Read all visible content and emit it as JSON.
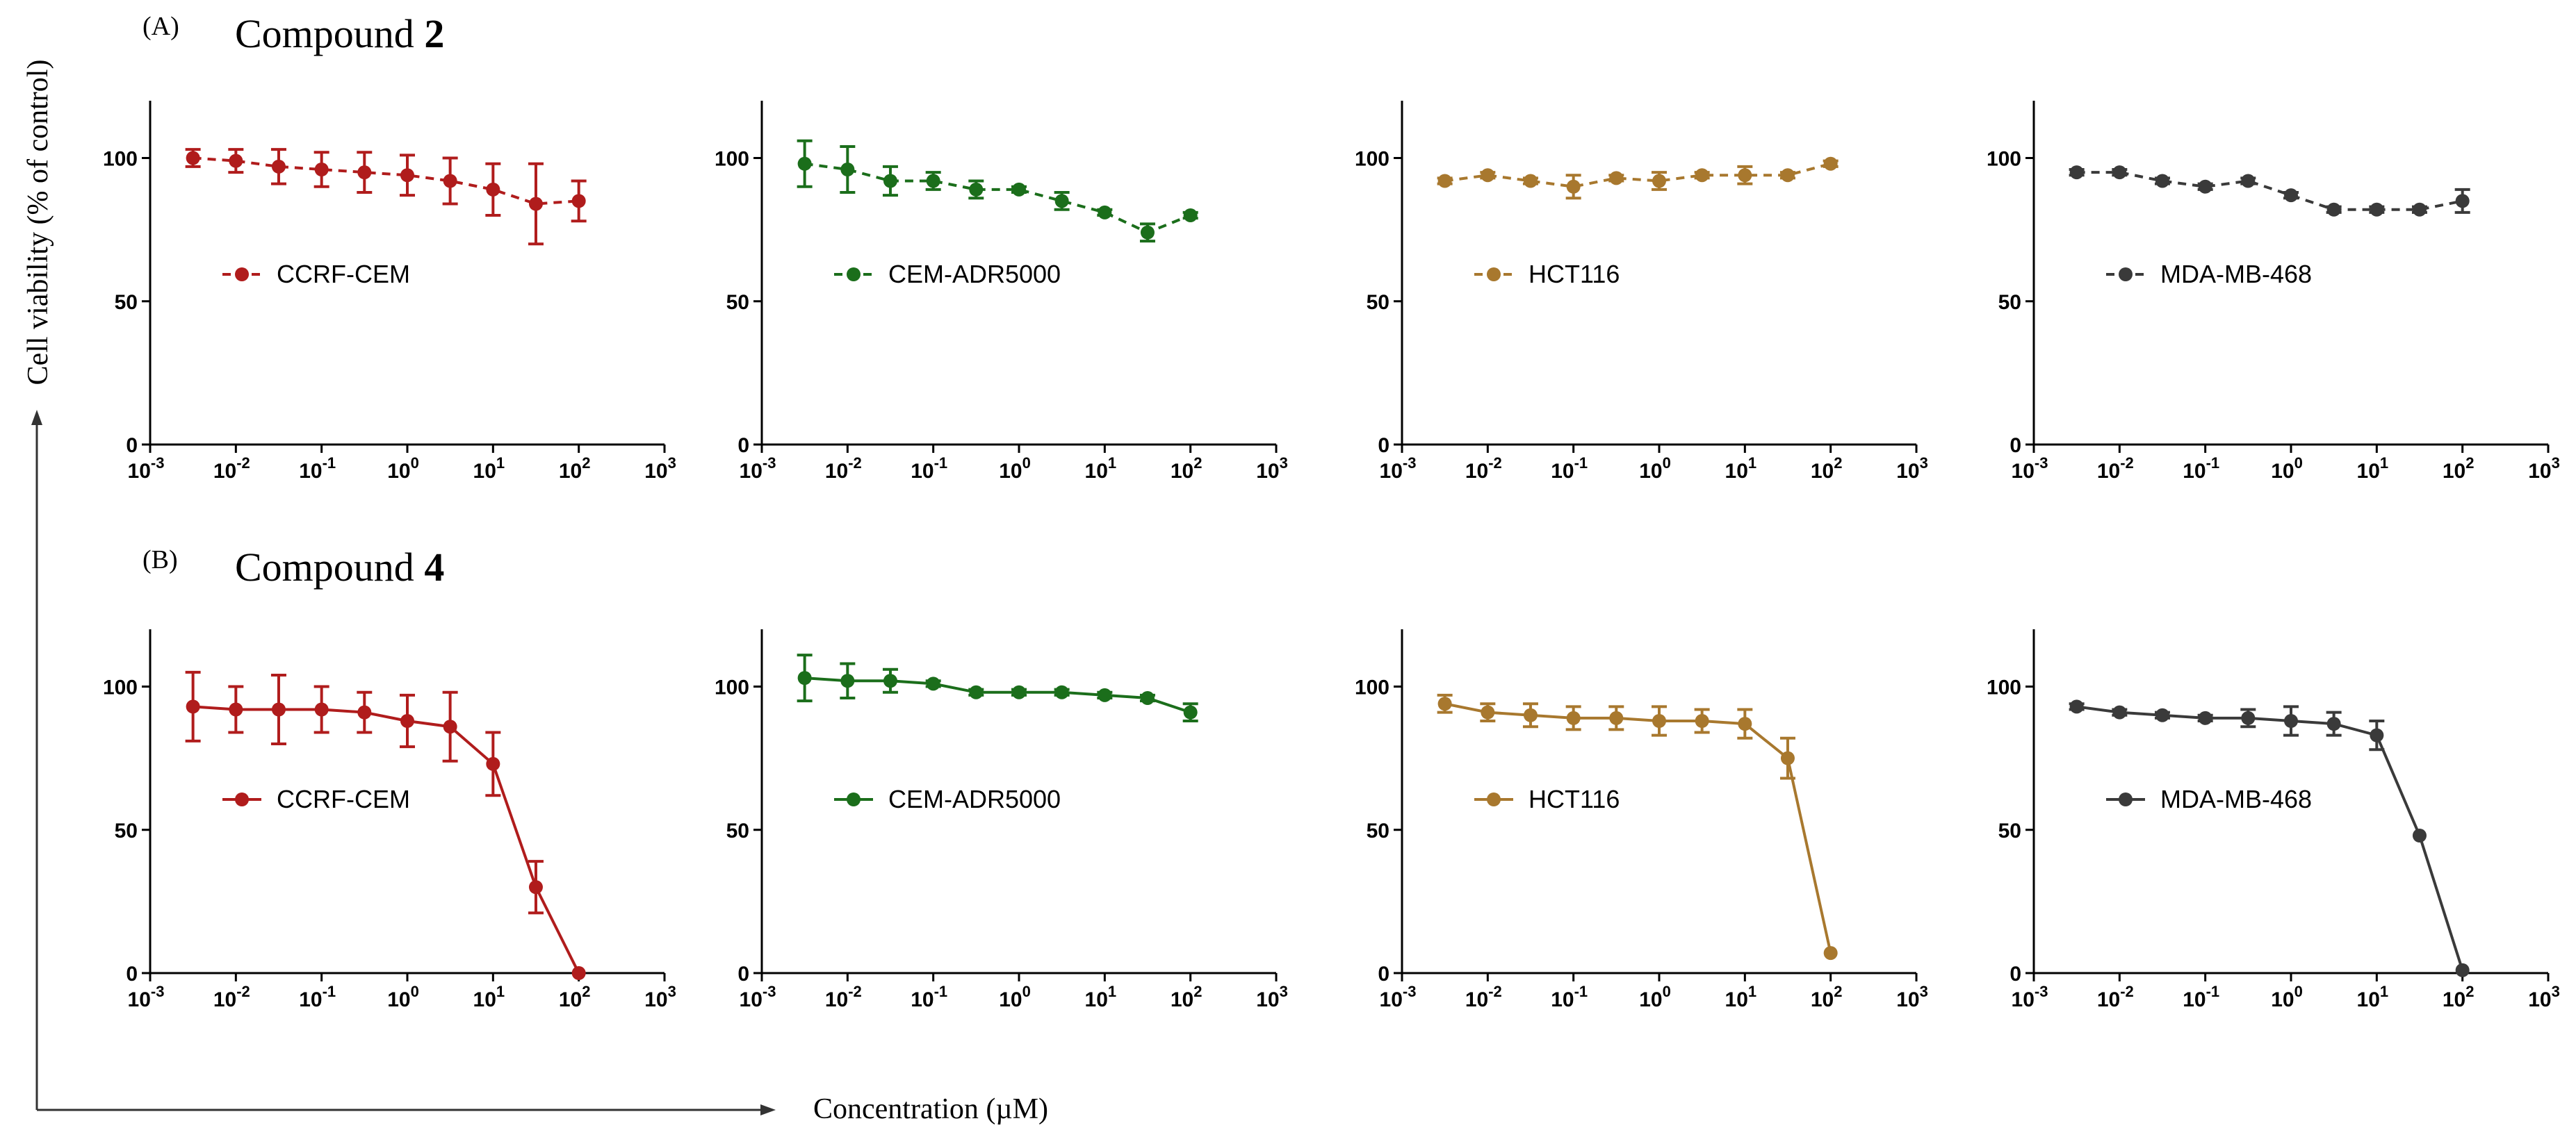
{
  "figure": {
    "y_axis_label": "Cell viability  (% of control)",
    "x_axis_label": "Concentration (µM)"
  },
  "panels": [
    {
      "tag": "(A)",
      "title_prefix": "Compound ",
      "title_number": "2"
    },
    {
      "tag": "(B)",
      "title_prefix": "Compound ",
      "title_number": "4"
    }
  ],
  "colors": {
    "CCRF-CEM": "#b01c1c",
    "CEM-ADR5000": "#1b6e1b",
    "HCT116": "#a8782e",
    "MDA-MB-468": "#3a3a3a"
  },
  "chart_data": [
    {
      "type": "line",
      "panel": "A",
      "xscale": "log",
      "xlim": [
        0.001,
        1000
      ],
      "ylim": [
        0,
        120
      ],
      "yticks": [
        0,
        50,
        100
      ],
      "xticks": [
        "10-3",
        "10-2",
        "10-1",
        "100",
        "101",
        "102",
        "103"
      ],
      "line_style": "dashed",
      "series": [
        {
          "name": "CCRF-CEM",
          "x": [
            0.00316,
            0.01,
            0.0316,
            0.1,
            0.316,
            1,
            3.16,
            10,
            31.6,
            100
          ],
          "y": [
            100,
            99,
            97,
            96,
            95,
            94,
            92,
            89,
            84,
            85
          ],
          "err": [
            3,
            4,
            6,
            6,
            7,
            7,
            8,
            9,
            14,
            7
          ]
        }
      ]
    },
    {
      "type": "line",
      "panel": "A",
      "xscale": "log",
      "xlim": [
        0.001,
        1000
      ],
      "ylim": [
        0,
        120
      ],
      "yticks": [
        0,
        50,
        100
      ],
      "xticks": [
        "10-3",
        "10-2",
        "10-1",
        "100",
        "101",
        "102",
        "103"
      ],
      "line_style": "dashed",
      "series": [
        {
          "name": "CEM-ADR5000",
          "x": [
            0.00316,
            0.01,
            0.0316,
            0.1,
            0.316,
            1,
            3.16,
            10,
            31.6,
            100
          ],
          "y": [
            98,
            96,
            92,
            92,
            89,
            89,
            85,
            81,
            74,
            80
          ],
          "err": [
            8,
            8,
            5,
            3,
            3,
            1,
            3,
            1,
            3,
            1
          ]
        }
      ]
    },
    {
      "type": "line",
      "panel": "A",
      "xscale": "log",
      "xlim": [
        0.001,
        1000
      ],
      "ylim": [
        0,
        120
      ],
      "yticks": [
        0,
        50,
        100
      ],
      "xticks": [
        "10-3",
        "10-2",
        "10-1",
        "100",
        "101",
        "102",
        "103"
      ],
      "line_style": "dashed",
      "series": [
        {
          "name": "HCT116",
          "x": [
            0.00316,
            0.01,
            0.0316,
            0.1,
            0.316,
            1,
            3.16,
            10,
            31.6,
            100
          ],
          "y": [
            92,
            94,
            92,
            90,
            93,
            92,
            94,
            94,
            94,
            98
          ],
          "err": [
            1,
            1,
            1,
            4,
            1,
            3,
            1,
            3,
            1,
            1
          ]
        }
      ]
    },
    {
      "type": "line",
      "panel": "A",
      "xscale": "log",
      "xlim": [
        0.001,
        1000
      ],
      "ylim": [
        0,
        120
      ],
      "yticks": [
        0,
        50,
        100
      ],
      "xticks": [
        "10-3",
        "10-2",
        "10-1",
        "100",
        "101",
        "102",
        "103"
      ],
      "line_style": "dashed",
      "series": [
        {
          "name": "MDA-MB-468",
          "x": [
            0.00316,
            0.01,
            0.0316,
            0.1,
            0.316,
            1,
            3.16,
            10,
            31.6,
            100
          ],
          "y": [
            95,
            95,
            92,
            90,
            92,
            87,
            82,
            82,
            82,
            85
          ],
          "err": [
            1,
            1,
            1,
            1,
            1,
            1,
            1,
            1,
            1,
            4
          ]
        }
      ]
    },
    {
      "type": "line",
      "panel": "B",
      "xscale": "log",
      "xlim": [
        0.001,
        1000
      ],
      "ylim": [
        0,
        120
      ],
      "yticks": [
        0,
        50,
        100
      ],
      "xticks": [
        "10-3",
        "10-2",
        "10-1",
        "100",
        "101",
        "102",
        "103"
      ],
      "line_style": "solid",
      "series": [
        {
          "name": "CCRF-CEM",
          "x": [
            0.00316,
            0.01,
            0.0316,
            0.1,
            0.316,
            1,
            3.16,
            10,
            31.6,
            100
          ],
          "y": [
            93,
            92,
            92,
            92,
            91,
            88,
            86,
            73,
            30,
            0
          ],
          "err": [
            12,
            8,
            12,
            8,
            7,
            9,
            12,
            11,
            9,
            0
          ]
        }
      ]
    },
    {
      "type": "line",
      "panel": "B",
      "xscale": "log",
      "xlim": [
        0.001,
        1000
      ],
      "ylim": [
        0,
        120
      ],
      "yticks": [
        0,
        50,
        100
      ],
      "xticks": [
        "10-3",
        "10-2",
        "10-1",
        "100",
        "101",
        "102",
        "103"
      ],
      "line_style": "solid",
      "series": [
        {
          "name": "CEM-ADR5000",
          "x": [
            0.00316,
            0.01,
            0.0316,
            0.1,
            0.316,
            1,
            3.16,
            10,
            31.6,
            100
          ],
          "y": [
            103,
            102,
            102,
            101,
            98,
            98,
            98,
            97,
            96,
            91
          ],
          "err": [
            8,
            6,
            4,
            1,
            1,
            1,
            1,
            1,
            1,
            3
          ]
        }
      ]
    },
    {
      "type": "line",
      "panel": "B",
      "xscale": "log",
      "xlim": [
        0.001,
        1000
      ],
      "ylim": [
        0,
        120
      ],
      "yticks": [
        0,
        50,
        100
      ],
      "xticks": [
        "10-3",
        "10-2",
        "10-1",
        "100",
        "101",
        "102",
        "103"
      ],
      "line_style": "solid",
      "series": [
        {
          "name": "HCT116",
          "x": [
            0.00316,
            0.01,
            0.0316,
            0.1,
            0.316,
            1,
            3.16,
            10,
            31.6,
            100
          ],
          "y": [
            94,
            91,
            90,
            89,
            89,
            88,
            88,
            87,
            75,
            7
          ],
          "err": [
            3,
            3,
            4,
            4,
            4,
            5,
            4,
            5,
            7,
            0
          ]
        }
      ]
    },
    {
      "type": "line",
      "panel": "B",
      "xscale": "log",
      "xlim": [
        0.001,
        1000
      ],
      "ylim": [
        0,
        120
      ],
      "yticks": [
        0,
        50,
        100
      ],
      "xticks": [
        "10-3",
        "10-2",
        "10-1",
        "100",
        "101",
        "102",
        "103"
      ],
      "line_style": "solid",
      "series": [
        {
          "name": "MDA-MB-468",
          "x": [
            0.00316,
            0.01,
            0.0316,
            0.1,
            0.316,
            1,
            3.16,
            10,
            31.6,
            100
          ],
          "y": [
            93,
            91,
            90,
            89,
            89,
            88,
            87,
            83,
            48,
            1
          ],
          "err": [
            1,
            1,
            1,
            1,
            3,
            5,
            4,
            5,
            0,
            0
          ]
        }
      ]
    }
  ]
}
